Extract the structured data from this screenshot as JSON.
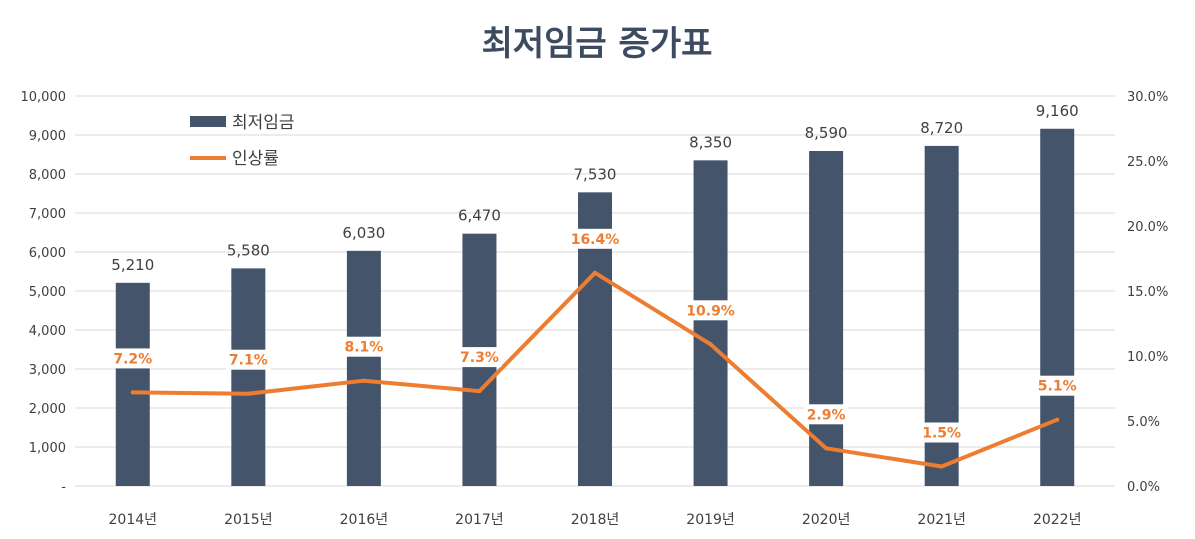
{
  "chart_data": {
    "type": "bar",
    "title": "최저임금 증가표",
    "categories": [
      "2014년",
      "2015년",
      "2016년",
      "2017년",
      "2018년",
      "2019년",
      "2020년",
      "2021년",
      "2022년"
    ],
    "series": [
      {
        "name": "최저임금",
        "type": "bar",
        "axis": "left",
        "color": "#44546a",
        "values": [
          5210,
          5580,
          6030,
          6470,
          7530,
          8350,
          8590,
          8720,
          9160
        ],
        "labels": [
          "5,210",
          "5,580",
          "6,030",
          "6,470",
          "7,530",
          "8,350",
          "8,590",
          "8,720",
          "9,160"
        ]
      },
      {
        "name": "인상률",
        "type": "line",
        "axis": "right",
        "color": "#ed7d31",
        "values": [
          7.2,
          7.1,
          8.1,
          7.3,
          16.4,
          10.9,
          2.9,
          1.5,
          5.1
        ],
        "labels": [
          "7.2%",
          "7.1%",
          "8.1%",
          "7.3%",
          "16.4%",
          "10.9%",
          "2.9%",
          "1.5%",
          "5.1%"
        ]
      }
    ],
    "y_left": {
      "min": 0,
      "max": 10000,
      "ticks": [
        0,
        1000,
        2000,
        3000,
        4000,
        5000,
        6000,
        7000,
        8000,
        9000,
        10000
      ],
      "tick_labels": [
        "-",
        "1,000",
        "2,000",
        "3,000",
        "4,000",
        "5,000",
        "6,000",
        "7,000",
        "8,000",
        "9,000",
        "10,000"
      ]
    },
    "y_right": {
      "min": 0,
      "max": 30,
      "ticks": [
        0,
        5,
        10,
        15,
        20,
        25,
        30
      ],
      "tick_labels": [
        "0.0%",
        "5.0%",
        "10.0%",
        "15.0%",
        "20.0%",
        "25.0%",
        "30.0%"
      ]
    },
    "grid": true,
    "legend": "top-left"
  }
}
